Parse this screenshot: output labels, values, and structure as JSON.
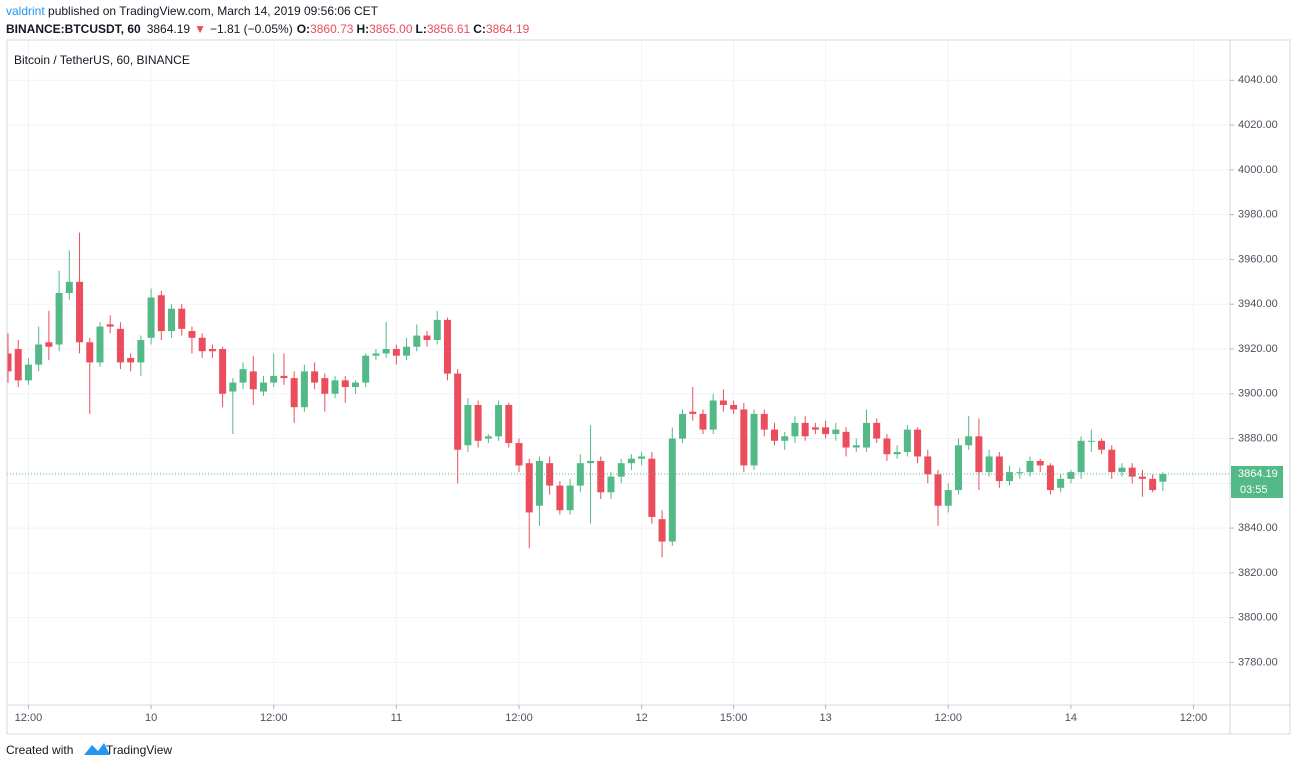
{
  "header": {
    "author": "valdrint",
    "published": " published on TradingView.com, March 14, 2019 09:56:06 CET",
    "symbol": "BINANCE:BTCUSDT, 60",
    "price": "3864.19",
    "arrow": "▼",
    "change": "−1.81 (−0.05%)",
    "o_label": "O:",
    "o": "3860.73",
    "h_label": "H:",
    "h": "3865.00",
    "l_label": "L:",
    "l": "3856.61",
    "c_label": "C:",
    "c": "3864.19"
  },
  "footer": {
    "created": "Created with",
    "brand": "TradingView"
  },
  "chart_data": {
    "type": "candlestick",
    "title": "Bitcoin / TetherUS, 60, BINANCE",
    "up_color": "#53b987",
    "down_color": "#eb4d5c",
    "grid": true,
    "categories": [
      null,
      null,
      "12:00",
      null,
      null,
      null,
      null,
      null,
      null,
      null,
      null,
      null,
      null,
      null,
      "10",
      null,
      null,
      null,
      null,
      null,
      null,
      null,
      null,
      null,
      null,
      null,
      "12:00",
      null,
      null,
      null,
      null,
      null,
      null,
      null,
      null,
      null,
      null,
      null,
      "11",
      null,
      null,
      null,
      null,
      null,
      null,
      null,
      null,
      null,
      null,
      null,
      "12:00",
      null,
      null,
      null,
      null,
      null,
      null,
      null,
      null,
      null,
      null,
      null,
      "12",
      null,
      null,
      null,
      null,
      null,
      null,
      null,
      null,
      "15:00",
      null,
      null,
      null,
      null,
      null,
      null,
      null,
      null,
      "13",
      null,
      null,
      null,
      null,
      null,
      null,
      null,
      null,
      null,
      null,
      null,
      "12:00",
      null,
      null,
      null,
      null,
      null,
      null,
      null,
      null,
      null,
      null,
      null,
      "14",
      null,
      null,
      null,
      null,
      null,
      null,
      null,
      null,
      null,
      null,
      null,
      "12:00",
      null,
      null,
      null
    ],
    "open": [
      3918,
      3920,
      3906,
      3913,
      3923,
      3922,
      3945,
      3950,
      3923,
      3914,
      3931,
      3929,
      3916,
      3914,
      3925,
      3944,
      3928,
      3938,
      3928,
      3925,
      3920,
      3920,
      3901,
      3905,
      3910,
      3901,
      3905,
      3908,
      3907,
      3894,
      3910,
      3907,
      3900,
      3906,
      3903,
      3905,
      3917,
      3918,
      3920,
      3917,
      3921,
      3926,
      3924,
      3933,
      3909,
      3877,
      3895,
      3880,
      3881,
      3895,
      3878,
      3869,
      3850,
      3869,
      3859,
      3848,
      3859,
      3869,
      3870,
      3856,
      3863,
      3869,
      3871,
      3871,
      3844,
      3834,
      3880,
      3892,
      3891,
      3884,
      3897,
      3895,
      3893,
      3868,
      3891,
      3884,
      3879,
      3881,
      3887,
      3885,
      3885,
      3882,
      3883,
      3876,
      3876,
      3887,
      3880,
      3873,
      3874,
      3884,
      3872,
      3864,
      3850,
      3857,
      3877,
      3881,
      3865,
      3872,
      3861,
      3865,
      3865,
      3870,
      3868,
      3858,
      3862,
      3865,
      3879,
      3879,
      3875,
      3865,
      3867,
      3863,
      3862,
      3860.73,
      null,
      null,
      null,
      null,
      null,
      null
    ],
    "high": [
      3927,
      3924,
      3916,
      3930,
      3937,
      3955,
      3964,
      3972,
      3925,
      3932,
      3935,
      3932,
      3918,
      3926,
      3947,
      3946,
      3940,
      3940,
      3930,
      3927,
      3922,
      3921,
      3907,
      3914,
      3917,
      3908,
      3918,
      3918,
      3910,
      3913,
      3914,
      3909,
      3908,
      3908,
      3906,
      3918,
      3920,
      3932,
      3922,
      3925,
      3931,
      3928,
      3937,
      3934,
      3911,
      3898,
      3897,
      3882,
      3897,
      3896,
      3880,
      3871,
      3872,
      3872,
      3861,
      3862,
      3873,
      3886,
      3872,
      3865,
      3871,
      3873,
      3874,
      3874,
      3848,
      3885,
      3893,
      3903,
      3893,
      3900,
      3902,
      3897,
      3896,
      3893,
      3893,
      3887,
      3883,
      3890,
      3890,
      3887,
      3888,
      3887,
      3885,
      3880,
      3893,
      3889,
      3882,
      3877,
      3886,
      3885,
      3875,
      3866,
      3860,
      3880,
      3890,
      3889,
      3875,
      3874,
      3868,
      3867,
      3872,
      3871,
      3869,
      3864,
      3866,
      3881,
      3884,
      3880,
      3877,
      3869,
      3869,
      3866,
      3864,
      3865,
      null,
      null,
      null,
      null,
      null,
      null
    ],
    "low": [
      3905,
      3903,
      3904,
      3910,
      3915,
      3919,
      3942,
      3918,
      3891,
      3912,
      3927,
      3911,
      3910,
      3908,
      3922,
      3924,
      3925,
      3926,
      3918,
      3916,
      3916,
      3894,
      3882,
      3902,
      3895,
      3899,
      3903,
      3904,
      3887,
      3892,
      3902,
      3892,
      3898,
      3896,
      3900,
      3903,
      3915,
      3916,
      3913,
      3915,
      3919,
      3921,
      3922,
      3906,
      3860,
      3874,
      3876,
      3878,
      3879,
      3876,
      3865,
      3831,
      3841,
      3855,
      3846,
      3846,
      3856,
      3842,
      3853,
      3853,
      3860,
      3866,
      3868,
      3842,
      3827,
      3832,
      3878,
      3888,
      3882,
      3882,
      3892,
      3891,
      3865,
      3866,
      3881,
      3877,
      3875,
      3878,
      3879,
      3882,
      3880,
      3879,
      3872,
      3874,
      3874,
      3878,
      3870,
      3871,
      3872,
      3869,
      3860,
      3841,
      3847,
      3855,
      3875,
      3857,
      3863,
      3858,
      3859,
      3862,
      3863,
      3865,
      3855,
      3856,
      3860,
      3862,
      3874,
      3873,
      3862,
      3863,
      3860,
      3854,
      3856,
      3856.61,
      null,
      null,
      null,
      null,
      null,
      null
    ],
    "close": [
      3910,
      3906,
      3913,
      3922,
      3921,
      3945,
      3950,
      3923,
      3914,
      3930,
      3930,
      3914,
      3914,
      3924,
      3943,
      3928,
      3938,
      3929,
      3925,
      3919,
      3919,
      3900,
      3905,
      3911,
      3902,
      3905,
      3908,
      3907,
      3894,
      3910,
      3905,
      3900,
      3906,
      3903,
      3905,
      3917,
      3918,
      3920,
      3917,
      3921,
      3926,
      3924,
      3933,
      3909,
      3875,
      3895,
      3879,
      3881,
      3895,
      3878,
      3868,
      3847,
      3870,
      3859,
      3848,
      3859,
      3869,
      3870,
      3856,
      3863,
      3869,
      3871,
      3872,
      3845,
      3834,
      3880,
      3891,
      3891,
      3884,
      3897,
      3895,
      3893,
      3868,
      3891,
      3884,
      3879,
      3881,
      3887,
      3881,
      3884,
      3882,
      3884,
      3876,
      3877,
      3887,
      3880,
      3873,
      3874,
      3884,
      3872,
      3864,
      3850,
      3857,
      3877,
      3881,
      3865,
      3872,
      3861,
      3865,
      3865,
      3870,
      3868,
      3857,
      3862,
      3865,
      3879,
      3879,
      3875,
      3865,
      3867,
      3863,
      3862,
      3857,
      3864.19,
      null,
      null,
      null,
      null,
      null,
      null
    ],
    "ylim": [
      3761,
      4058
    ],
    "yticks": [
      {
        "value": 3780,
        "label": "3780.00"
      },
      {
        "value": 3800,
        "label": "3800.00"
      },
      {
        "value": 3820,
        "label": "3820.00"
      },
      {
        "value": 3840,
        "label": "3840.00"
      },
      {
        "value": 3860,
        "label": "3860.00"
      },
      {
        "value": 3880,
        "label": "3880.00"
      },
      {
        "value": 3900,
        "label": "3900.00"
      },
      {
        "value": 3920,
        "label": "3920.00"
      },
      {
        "value": 3940,
        "label": "3940.00"
      },
      {
        "value": 3960,
        "label": "3960.00"
      },
      {
        "value": 3980,
        "label": "3980.00"
      },
      {
        "value": 4000,
        "label": "4000.00"
      },
      {
        "value": 4020,
        "label": "4020.00"
      },
      {
        "value": 4040,
        "label": "4040.00"
      }
    ],
    "last_price": 3864.19,
    "countdown": "03:55"
  }
}
